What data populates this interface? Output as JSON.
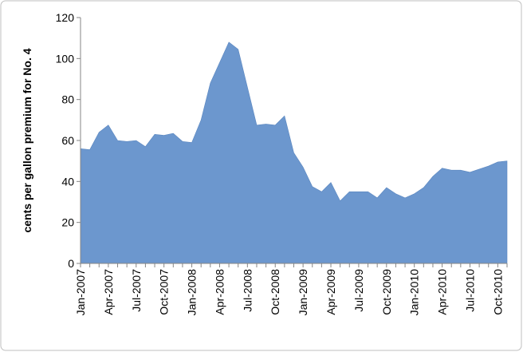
{
  "chart_data": {
    "type": "area",
    "ylabel": "cents per gallon premium for No. 4",
    "categories": [
      "Jan-2007",
      null,
      null,
      "Apr-2007",
      null,
      null,
      "Jul-2007",
      null,
      null,
      "Oct-2007",
      null,
      null,
      "Jan-2008",
      null,
      null,
      "Apr-2008",
      null,
      null,
      "Jul-2008",
      null,
      null,
      "Oct-2008",
      null,
      null,
      "Jan-2009",
      null,
      null,
      "Apr-2009",
      null,
      null,
      "Jul-2009",
      null,
      null,
      "Oct-2009",
      null,
      null,
      "Jan-2010",
      null,
      null,
      "Apr-2010",
      null,
      null,
      "Jul-2010",
      null,
      null,
      "Oct-2010",
      null
    ],
    "values": [
      56,
      55.5,
      64,
      67.5,
      60,
      59.5,
      60,
      57,
      63,
      62.5,
      63.5,
      59.5,
      59,
      70,
      88,
      98,
      108,
      104.5,
      86,
      67.5,
      68,
      67.5,
      72,
      54,
      47,
      37.5,
      35,
      39.5,
      30.5,
      35,
      35,
      35,
      32,
      37,
      34,
      32,
      34,
      37,
      42.5,
      46.5,
      45.5,
      45.5,
      44.5,
      46,
      47.5,
      49.5,
      50
    ],
    "color": "#6c97ce",
    "ylim": [
      0,
      120
    ],
    "yticks": [
      0,
      20,
      40,
      60,
      80,
      100,
      120
    ],
    "grid": false
  }
}
